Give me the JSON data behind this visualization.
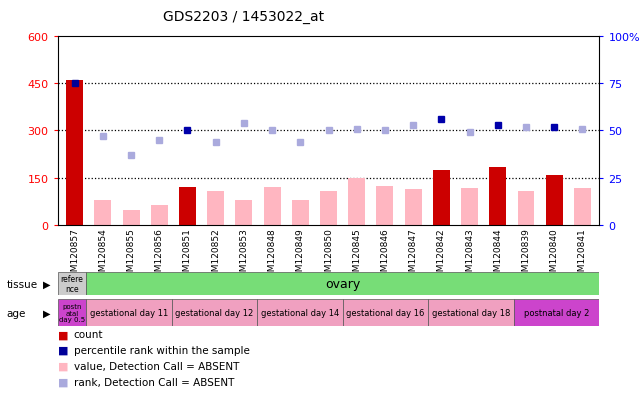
{
  "title": "GDS2203 / 1453022_at",
  "samples": [
    "GSM120857",
    "GSM120854",
    "GSM120855",
    "GSM120856",
    "GSM120851",
    "GSM120852",
    "GSM120853",
    "GSM120848",
    "GSM120849",
    "GSM120850",
    "GSM120845",
    "GSM120846",
    "GSM120847",
    "GSM120842",
    "GSM120843",
    "GSM120844",
    "GSM120839",
    "GSM120840",
    "GSM120841"
  ],
  "count_values": [
    460,
    0,
    0,
    0,
    120,
    0,
    0,
    0,
    0,
    0,
    0,
    0,
    0,
    175,
    0,
    185,
    0,
    158,
    0
  ],
  "count_absent": [
    0,
    78,
    48,
    63,
    0,
    108,
    78,
    120,
    78,
    108,
    148,
    123,
    115,
    0,
    118,
    0,
    108,
    0,
    118
  ],
  "rank_present": [
    75,
    0,
    0,
    0,
    0,
    0,
    0,
    0,
    0,
    0,
    0,
    0,
    0,
    0,
    0,
    0,
    0,
    0,
    0
  ],
  "rank_absent": [
    0,
    47,
    37,
    45,
    50,
    44,
    54,
    50,
    44,
    50,
    51,
    50,
    53,
    56,
    49,
    53,
    52,
    52,
    51
  ],
  "rank_present_idx": [
    0
  ],
  "rank_dark_idx": [
    4,
    13,
    15,
    17
  ],
  "tissue_ref": "refere\nnce",
  "tissue_main": "ovary",
  "age_groups": [
    {
      "label": "postn\natal\nday 0.5",
      "start": 0,
      "end": 1,
      "postnatal": true
    },
    {
      "label": "gestational day 11",
      "start": 1,
      "end": 4,
      "postnatal": false
    },
    {
      "label": "gestational day 12",
      "start": 4,
      "end": 7,
      "postnatal": false
    },
    {
      "label": "gestational day 14",
      "start": 7,
      "end": 10,
      "postnatal": false
    },
    {
      "label": "gestational day 16",
      "start": 10,
      "end": 13,
      "postnatal": false
    },
    {
      "label": "gestational day 18",
      "start": 13,
      "end": 16,
      "postnatal": false
    },
    {
      "label": "postnatal day 2",
      "start": 16,
      "end": 19,
      "postnatal": true
    }
  ],
  "ylim_left": [
    0,
    600
  ],
  "ylim_right": [
    0,
    100
  ],
  "yticks_left": [
    0,
    150,
    300,
    450,
    600
  ],
  "yticks_right": [
    0,
    25,
    50,
    75,
    100
  ],
  "bar_color_present": "#cc0000",
  "bar_color_absent": "#ffb6c1",
  "dot_color_present": "#000099",
  "dot_color_absent": "#aaaadd",
  "dot_color_dark": "#0000aa",
  "tissue_ref_color": "#cccccc",
  "tissue_main_color": "#77dd77",
  "age_light_color": "#f0a0c0",
  "age_dark_color": "#cc44cc",
  "chart_bg": "#ffffff"
}
